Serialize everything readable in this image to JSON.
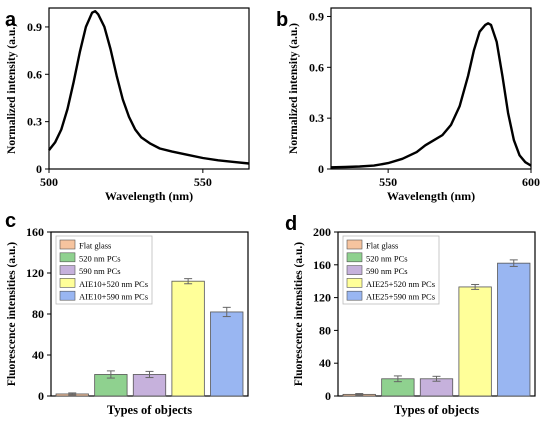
{
  "chart_data": [
    {
      "panel": "a",
      "type": "line",
      "xlabel": "Wavelength (nm)",
      "ylabel": "Normalized intensity (a.u.)",
      "xlim": [
        500,
        565
      ],
      "ylim": [
        0,
        1.02
      ],
      "xticks": [
        500,
        550
      ],
      "yticks": [
        0,
        0.3,
        0.6,
        0.9
      ],
      "ytick_labels": [
        "0",
        "0.3",
        "0.6",
        "0.9"
      ],
      "grid": false,
      "series": [
        {
          "color": "#000000",
          "x": [
            500,
            502,
            504,
            506,
            508,
            510,
            512,
            514,
            515,
            516,
            518,
            520,
            522,
            524,
            526,
            528,
            530,
            533,
            536,
            540,
            545,
            550,
            555,
            560,
            565
          ],
          "y": [
            0.12,
            0.17,
            0.25,
            0.38,
            0.55,
            0.74,
            0.9,
            0.99,
            1.0,
            0.98,
            0.9,
            0.76,
            0.59,
            0.44,
            0.33,
            0.25,
            0.2,
            0.16,
            0.13,
            0.11,
            0.09,
            0.07,
            0.055,
            0.045,
            0.035
          ]
        }
      ]
    },
    {
      "panel": "b",
      "type": "line",
      "xlabel": "Wavelength (nm)",
      "ylabel": "Normalized intensity (a.u.)",
      "xlim": [
        530,
        600
      ],
      "ylim": [
        0,
        0.95
      ],
      "xticks": [
        550,
        600
      ],
      "yticks": [
        0,
        0.3,
        0.6,
        0.9
      ],
      "ytick_labels": [
        "0",
        "0.3",
        "0.6",
        "0.9"
      ],
      "grid": false,
      "series": [
        {
          "color": "#000000",
          "x": [
            530,
            535,
            540,
            545,
            550,
            555,
            560,
            563,
            566,
            569,
            572,
            575,
            578,
            580,
            582,
            584,
            585,
            586,
            588,
            590,
            592,
            594,
            596,
            598,
            600
          ],
          "y": [
            0.01,
            0.012,
            0.015,
            0.02,
            0.035,
            0.06,
            0.1,
            0.14,
            0.17,
            0.2,
            0.26,
            0.37,
            0.55,
            0.7,
            0.81,
            0.85,
            0.86,
            0.85,
            0.75,
            0.55,
            0.33,
            0.17,
            0.08,
            0.04,
            0.02
          ]
        }
      ]
    },
    {
      "panel": "c",
      "type": "bar",
      "xlabel": "Types of objects",
      "ylabel": "Fluorescence intensities (a.u.)",
      "ylim": [
        0,
        160
      ],
      "yticks": [
        0,
        40,
        80,
        120,
        160
      ],
      "grid": false,
      "legend_position": "top-left",
      "categories": [
        "Flat glass",
        "520 nm PCs",
        "590 nm PCs",
        "AIE10+520 nm PCs",
        "AIE10+590 nm PCs"
      ],
      "values": [
        2,
        21,
        21,
        112,
        82
      ],
      "errors": [
        1,
        3.5,
        3,
        2.5,
        4.5
      ],
      "colors": [
        "#f6c49f",
        "#8fd18f",
        "#c6b1dc",
        "#ffff99",
        "#99b6f2"
      ]
    },
    {
      "panel": "d",
      "type": "bar",
      "xlabel": "Types of objects",
      "ylabel": "Fluorescence intensities (a.u.)",
      "ylim": [
        0,
        200
      ],
      "yticks": [
        0,
        40,
        80,
        120,
        160,
        200
      ],
      "grid": false,
      "legend_position": "top-left",
      "categories": [
        "Flat glass",
        "520 nm PCs",
        "590 nm PCs",
        "AIE25+520 nm PCs",
        "AIE25+590 nm PCs"
      ],
      "values": [
        2,
        21,
        21,
        133,
        162
      ],
      "errors": [
        1,
        3.5,
        3,
        3,
        4
      ],
      "colors": [
        "#f6c49f",
        "#8fd18f",
        "#c6b1dc",
        "#ffff99",
        "#99b6f2"
      ]
    }
  ]
}
